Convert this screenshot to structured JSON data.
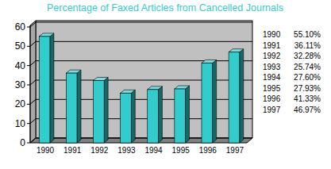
{
  "chart_data": {
    "type": "bar",
    "title": "Percentage of Faxed Articles from Cancelled Journals",
    "categories": [
      "1990",
      "1991",
      "1992",
      "1993",
      "1994",
      "1995",
      "1996",
      "1997"
    ],
    "values": [
      55.1,
      36.11,
      32.28,
      25.74,
      27.6,
      27.93,
      41.33,
      46.97
    ],
    "value_labels": [
      "55.10%",
      "36.11%",
      "32.28%",
      "25.74%",
      "27.60%",
      "27.93%",
      "41.33%",
      "46.97%"
    ],
    "color": "#33cccc",
    "ylim": [
      0,
      60
    ],
    "yticks": [
      0,
      10,
      20,
      30,
      40,
      50,
      60
    ],
    "grid": true
  }
}
